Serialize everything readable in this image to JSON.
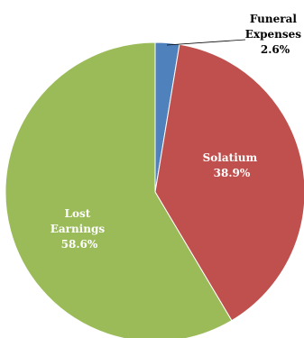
{
  "chart_data": {
    "type": "pie",
    "title": "",
    "slices": [
      {
        "label_lines": [
          "Funeral",
          "Expenses"
        ],
        "value_label": "2.6%",
        "value": 2.6,
        "color": "#4f81bd"
      },
      {
        "label_lines": [
          "Solatium"
        ],
        "value_label": "38.9%",
        "value": 38.9,
        "color": "#c0504d"
      },
      {
        "label_lines": [
          "Lost",
          "Earnings"
        ],
        "value_label": "58.6%",
        "value": 58.6,
        "color": "#9bbb59"
      }
    ],
    "start_angle_deg": 0,
    "direction": "clockwise",
    "legend": "none"
  }
}
